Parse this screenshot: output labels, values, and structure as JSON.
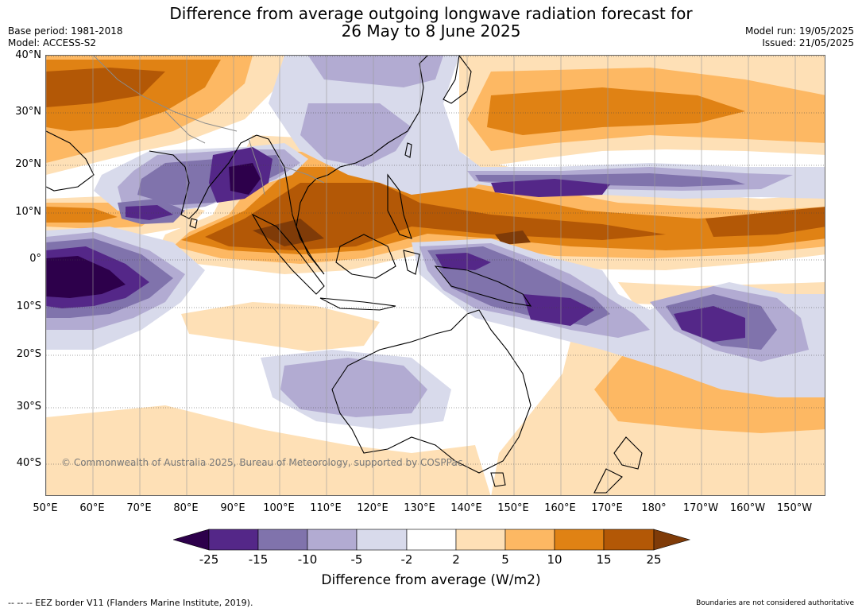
{
  "title": {
    "line1": "Difference from average outgoing longwave radiation forecast for",
    "line2": "26 May to 8 June 2025"
  },
  "meta_left": {
    "base_period": "Base period: 1981-2018",
    "model": "Model: ACCESS-S2"
  },
  "meta_right": {
    "model_run": "Model run: 19/05/2025",
    "issued": "Issued: 21/05/2025"
  },
  "map": {
    "lat_labels": [
      "40°N",
      "30°N",
      "20°N",
      "10°N",
      "0°",
      "10°S",
      "20°S",
      "30°S",
      "40°S"
    ],
    "lon_labels": [
      "50°E",
      "60°E",
      "70°E",
      "80°E",
      "90°E",
      "100°E",
      "110°E",
      "120°E",
      "130°E",
      "140°E",
      "150°E",
      "160°E",
      "170°E",
      "180°",
      "170°W",
      "160°W",
      "150°W"
    ],
    "copyright": "© Commonwealth of Australia 2025, Bureau of Meteorology, supported by COSPPac",
    "colors": {
      "ocean_neutral": "#ffffff",
      "coast": "#000000",
      "border": "#8c8c8c"
    }
  },
  "colorbar": {
    "tick_labels": [
      "-25",
      "-15",
      "-10",
      "-5",
      "-2",
      "2",
      "5",
      "10",
      "15",
      "25"
    ],
    "colors": [
      "#2d004b",
      "#542788",
      "#8073ac",
      "#b2abd2",
      "#d8daeb",
      "#ffffff",
      "#fee0b6",
      "#fdb863",
      "#e08214",
      "#b35806",
      "#7f3b08"
    ],
    "title": "Difference from average (W/m2)"
  },
  "footer": {
    "left": "--  --  -- EEZ border V11 (Flanders Marine Institute, 2019).",
    "right": "Boundaries are not considered authoritative"
  }
}
